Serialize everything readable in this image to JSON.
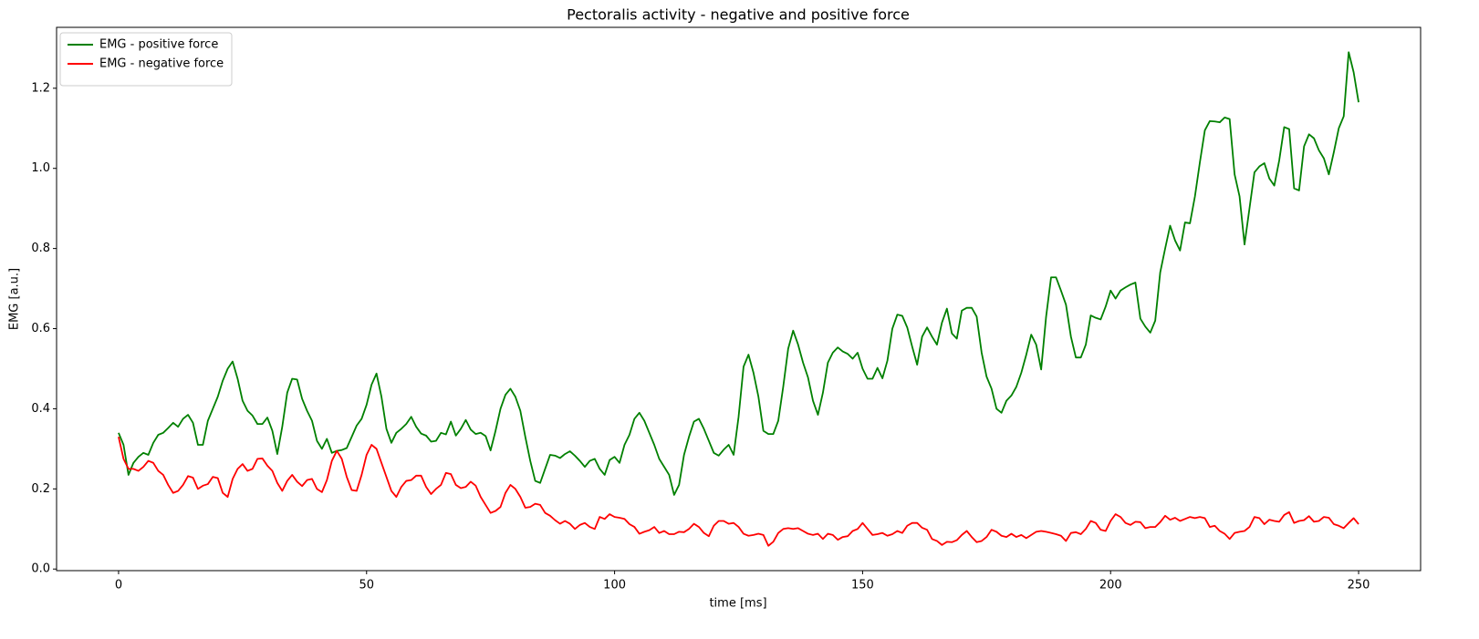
{
  "chart_data": {
    "type": "line",
    "title": "Pectoralis activity - negative and positive force",
    "xlabel": "time [ms]",
    "ylabel": "EMG [a.u.]",
    "x": [
      0,
      1,
      2,
      3,
      4,
      5,
      6,
      7,
      8,
      9,
      10,
      11,
      12,
      13,
      14,
      15,
      16,
      17,
      18,
      19,
      20,
      21,
      22,
      23,
      24,
      25,
      26,
      27,
      28,
      29,
      30,
      31,
      32,
      33,
      34,
      35,
      36,
      37,
      38,
      39,
      40,
      41,
      42,
      43,
      44,
      45,
      46,
      47,
      48,
      49,
      50,
      51,
      52,
      53,
      54,
      55,
      56,
      57,
      58,
      59,
      60,
      61,
      62,
      63,
      64,
      65,
      66,
      67,
      68,
      69,
      70,
      71,
      72,
      73,
      74,
      75,
      76,
      77,
      78,
      79,
      80,
      81,
      82,
      83,
      84,
      85,
      86,
      87,
      88,
      89,
      90,
      91,
      92,
      93,
      94,
      95,
      96,
      97,
      98,
      99,
      100,
      101,
      102,
      103,
      104,
      105,
      106,
      107,
      108,
      109,
      110,
      111,
      112,
      113,
      114,
      115,
      116,
      117,
      118,
      119,
      120,
      121,
      122,
      123,
      124,
      125,
      126,
      127,
      128,
      129,
      130,
      131,
      132,
      133,
      134,
      135,
      136,
      137,
      138,
      139,
      140,
      141,
      142,
      143,
      144,
      145,
      146,
      147,
      148,
      149,
      150,
      151,
      152,
      153,
      154,
      155,
      156,
      157,
      158,
      159,
      160,
      161,
      162,
      163,
      164,
      165,
      166,
      167,
      168,
      169,
      170,
      171,
      172,
      173,
      174,
      175,
      176,
      177,
      178,
      179,
      180,
      181,
      182,
      183,
      184,
      185,
      186,
      187,
      188,
      189,
      190,
      191,
      192,
      193,
      194,
      195,
      196,
      197,
      198,
      199,
      200,
      201,
      202,
      203,
      204,
      205,
      206,
      207,
      208,
      209,
      210,
      211,
      212,
      213,
      214,
      215,
      216,
      217,
      218,
      219,
      220,
      221,
      222,
      223,
      224,
      225,
      226,
      227,
      228,
      229,
      230,
      231,
      232,
      233,
      234,
      235,
      236,
      237,
      238,
      239,
      240,
      241,
      242,
      243,
      244,
      245,
      246,
      247,
      248,
      249,
      250
    ],
    "series": [
      {
        "name": "EMG - positive force",
        "color": "#008000",
        "values": [
          0.34,
          0.31,
          0.235,
          0.265,
          0.28,
          0.29,
          0.285,
          0.315,
          0.335,
          0.34,
          0.352,
          0.365,
          0.355,
          0.375,
          0.385,
          0.365,
          0.31,
          0.31,
          0.37,
          0.4,
          0.43,
          0.47,
          0.5,
          0.518,
          0.475,
          0.42,
          0.395,
          0.383,
          0.362,
          0.362,
          0.378,
          0.345,
          0.287,
          0.355,
          0.44,
          0.475,
          0.473,
          0.425,
          0.395,
          0.37,
          0.32,
          0.3,
          0.325,
          0.29,
          0.295,
          0.297,
          0.302,
          0.33,
          0.358,
          0.375,
          0.41,
          0.46,
          0.488,
          0.43,
          0.35,
          0.315,
          0.34,
          0.35,
          0.362,
          0.38,
          0.355,
          0.338,
          0.333,
          0.318,
          0.32,
          0.34,
          0.336,
          0.368,
          0.333,
          0.35,
          0.372,
          0.348,
          0.337,
          0.34,
          0.332,
          0.296,
          0.345,
          0.4,
          0.435,
          0.45,
          0.43,
          0.395,
          0.33,
          0.27,
          0.22,
          0.215,
          0.25,
          0.285,
          0.283,
          0.277,
          0.287,
          0.294,
          0.283,
          0.27,
          0.255,
          0.27,
          0.275,
          0.25,
          0.235,
          0.272,
          0.28,
          0.265,
          0.31,
          0.335,
          0.375,
          0.39,
          0.37,
          0.34,
          0.31,
          0.275,
          0.255,
          0.235,
          0.185,
          0.21,
          0.285,
          0.33,
          0.368,
          0.375,
          0.35,
          0.32,
          0.29,
          0.283,
          0.298,
          0.31,
          0.285,
          0.38,
          0.505,
          0.535,
          0.49,
          0.43,
          0.345,
          0.337,
          0.337,
          0.37,
          0.455,
          0.55,
          0.595,
          0.56,
          0.515,
          0.478,
          0.42,
          0.385,
          0.44,
          0.515,
          0.54,
          0.553,
          0.543,
          0.537,
          0.525,
          0.54,
          0.5,
          0.475,
          0.475,
          0.502,
          0.476,
          0.52,
          0.6,
          0.635,
          0.632,
          0.603,
          0.555,
          0.51,
          0.58,
          0.603,
          0.58,
          0.56,
          0.615,
          0.65,
          0.588,
          0.575,
          0.645,
          0.652,
          0.652,
          0.63,
          0.54,
          0.48,
          0.45,
          0.4,
          0.39,
          0.42,
          0.433,
          0.455,
          0.49,
          0.535,
          0.585,
          0.56,
          0.498,
          0.63,
          0.728,
          0.728,
          0.695,
          0.66,
          0.58,
          0.528,
          0.528,
          0.56,
          0.633,
          0.627,
          0.623,
          0.655,
          0.695,
          0.675,
          0.695,
          0.703,
          0.71,
          0.715,
          0.625,
          0.605,
          0.59,
          0.62,
          0.74,
          0.8,
          0.857,
          0.82,
          0.795,
          0.865,
          0.863,
          0.93,
          1.015,
          1.095,
          1.118,
          1.117,
          1.115,
          1.127,
          1.123,
          0.985,
          0.93,
          0.81,
          0.9,
          0.99,
          1.005,
          1.013,
          0.975,
          0.957,
          1.02,
          1.103,
          1.098,
          0.95,
          0.945,
          1.055,
          1.085,
          1.075,
          1.045,
          1.025,
          0.985,
          1.04,
          1.1,
          1.13,
          1.29,
          1.24,
          1.165
        ]
      },
      {
        "name": "EMG - negative force",
        "color": "#ff0000",
        "values": [
          0.33,
          0.275,
          0.25,
          0.25,
          0.245,
          0.255,
          0.27,
          0.265,
          0.245,
          0.235,
          0.21,
          0.19,
          0.195,
          0.21,
          0.232,
          0.228,
          0.2,
          0.208,
          0.212,
          0.23,
          0.227,
          0.19,
          0.18,
          0.225,
          0.25,
          0.262,
          0.245,
          0.25,
          0.275,
          0.276,
          0.258,
          0.245,
          0.215,
          0.195,
          0.22,
          0.235,
          0.218,
          0.207,
          0.222,
          0.225,
          0.2,
          0.192,
          0.222,
          0.27,
          0.295,
          0.275,
          0.23,
          0.197,
          0.195,
          0.235,
          0.285,
          0.31,
          0.3,
          0.265,
          0.23,
          0.195,
          0.18,
          0.205,
          0.22,
          0.222,
          0.233,
          0.233,
          0.205,
          0.187,
          0.2,
          0.21,
          0.24,
          0.237,
          0.21,
          0.202,
          0.205,
          0.218,
          0.208,
          0.18,
          0.16,
          0.14,
          0.145,
          0.155,
          0.19,
          0.21,
          0.2,
          0.18,
          0.153,
          0.155,
          0.163,
          0.16,
          0.14,
          0.133,
          0.122,
          0.113,
          0.12,
          0.113,
          0.1,
          0.11,
          0.115,
          0.105,
          0.1,
          0.13,
          0.125,
          0.137,
          0.13,
          0.128,
          0.125,
          0.112,
          0.105,
          0.088,
          0.093,
          0.097,
          0.105,
          0.09,
          0.095,
          0.087,
          0.087,
          0.093,
          0.092,
          0.1,
          0.113,
          0.105,
          0.09,
          0.082,
          0.108,
          0.12,
          0.12,
          0.113,
          0.115,
          0.105,
          0.088,
          0.083,
          0.085,
          0.088,
          0.085,
          0.058,
          0.068,
          0.09,
          0.1,
          0.102,
          0.1,
          0.102,
          0.095,
          0.088,
          0.085,
          0.088,
          0.075,
          0.088,
          0.085,
          0.073,
          0.08,
          0.082,
          0.095,
          0.1,
          0.115,
          0.1,
          0.085,
          0.087,
          0.09,
          0.083,
          0.087,
          0.095,
          0.09,
          0.108,
          0.115,
          0.115,
          0.103,
          0.098,
          0.075,
          0.07,
          0.06,
          0.068,
          0.067,
          0.072,
          0.085,
          0.095,
          0.08,
          0.067,
          0.07,
          0.08,
          0.098,
          0.093,
          0.083,
          0.08,
          0.088,
          0.08,
          0.085,
          0.077,
          0.085,
          0.093,
          0.095,
          0.093,
          0.09,
          0.087,
          0.083,
          0.07,
          0.09,
          0.092,
          0.087,
          0.1,
          0.12,
          0.115,
          0.098,
          0.095,
          0.12,
          0.137,
          0.13,
          0.115,
          0.11,
          0.118,
          0.117,
          0.102,
          0.105,
          0.105,
          0.117,
          0.133,
          0.123,
          0.128,
          0.12,
          0.125,
          0.13,
          0.127,
          0.13,
          0.127,
          0.105,
          0.108,
          0.095,
          0.088,
          0.075,
          0.09,
          0.093,
          0.095,
          0.105,
          0.13,
          0.127,
          0.112,
          0.123,
          0.12,
          0.118,
          0.135,
          0.142,
          0.115,
          0.12,
          0.122,
          0.132,
          0.118,
          0.12,
          0.13,
          0.128,
          0.112,
          0.108,
          0.102,
          0.115,
          0.127,
          0.112
        ]
      }
    ],
    "xlim": [
      -12.5,
      262.5
    ],
    "xticks": [
      0,
      50,
      100,
      150,
      200,
      250
    ],
    "ylim": [
      -0.004,
      1.352
    ],
    "yticks": [
      {
        "value": 0,
        "label": "0.0"
      },
      0.2,
      0.4,
      0.6,
      0.8,
      {
        "value": 1,
        "label": "1.0"
      },
      1.2
    ],
    "grid": false,
    "legend": "upper left"
  }
}
